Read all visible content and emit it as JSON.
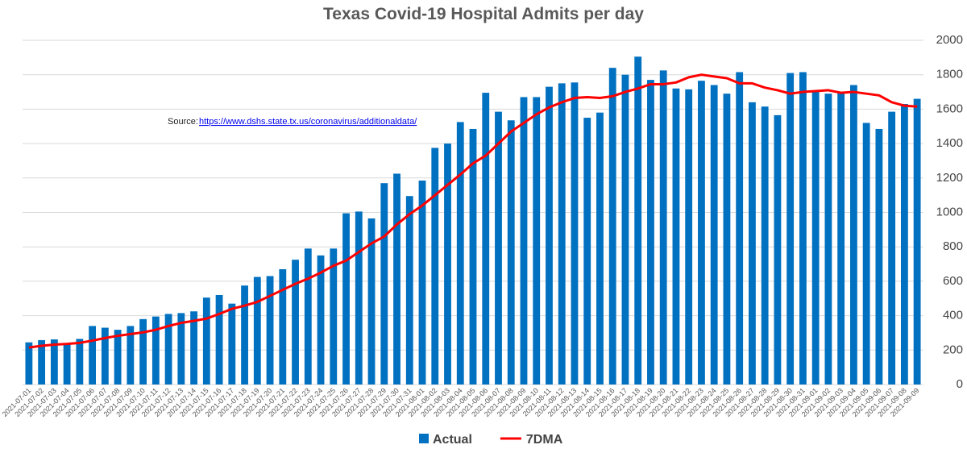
{
  "chart_data": {
    "type": "bar_line",
    "title": "Texas Covid-19 Hospital Admits per day",
    "source_label": "Source:",
    "source_url": "https://www.dshs.state.tx.us/coronavirus/additionaldata/",
    "categories": [
      "2021-07-01",
      "2021-07-02",
      "2021-07-03",
      "2021-07-04",
      "2021-07-05",
      "2021-07-06",
      "2021-07-07",
      "2021-07-08",
      "2021-07-09",
      "2021-07-10",
      "2021-07-11",
      "2021-07-12",
      "2021-07-13",
      "2021-07-14",
      "2021-07-15",
      "2021-07-16",
      "2021-07-17",
      "2021-07-18",
      "2021-07-19",
      "2021-07-20",
      "2021-07-21",
      "2021-07-22",
      "2021-07-23",
      "2021-07-24",
      "2021-07-25",
      "2021-07-26",
      "2021-07-27",
      "2021-07-28",
      "2021-07-29",
      "2021-07-30",
      "2021-07-31",
      "2021-08-01",
      "2021-08-02",
      "2021-08-03",
      "2021-08-04",
      "2021-08-05",
      "2021-08-06",
      "2021-08-07",
      "2021-08-08",
      "2021-08-09",
      "2021-08-10",
      "2021-08-11",
      "2021-08-12",
      "2021-08-13",
      "2021-08-14",
      "2021-08-15",
      "2021-08-16",
      "2021-08-17",
      "2021-08-18",
      "2021-08-19",
      "2021-08-20",
      "2021-08-21",
      "2021-08-22",
      "2021-08-23",
      "2021-08-24",
      "2021-08-25",
      "2021-08-26",
      "2021-08-27",
      "2021-08-28",
      "2021-08-29",
      "2021-08-30",
      "2021-08-31",
      "2021-09-01",
      "2021-09-02",
      "2021-09-03",
      "2021-09-04",
      "2021-09-05",
      "2021-09-06",
      "2021-09-07",
      "2021-09-08",
      "2021-09-09"
    ],
    "series": [
      {
        "name": "Actual",
        "kind": "bar",
        "color": "#0070c0",
        "values": [
          245,
          258,
          262,
          232,
          265,
          340,
          330,
          318,
          340,
          380,
          395,
          410,
          415,
          425,
          505,
          520,
          470,
          575,
          625,
          630,
          670,
          725,
          790,
          750,
          790,
          995,
          1005,
          965,
          1170,
          1225,
          1095,
          1185,
          1375,
          1400,
          1525,
          1485,
          1695,
          1585,
          1535,
          1670,
          1670,
          1730,
          1750,
          1755,
          1550,
          1580,
          1840,
          1800,
          1905,
          1770,
          1825,
          1720,
          1715,
          1765,
          1740,
          1690,
          1815,
          1640,
          1615,
          1565,
          1810,
          1815,
          1700,
          1690,
          1700,
          1740,
          1520,
          1485,
          1585,
          1630,
          1660
        ]
      },
      {
        "name": "7DMA",
        "kind": "line",
        "color": "#ff0000",
        "values": [
          215,
          225,
          232,
          236,
          242,
          255,
          270,
          283,
          293,
          303,
          318,
          340,
          358,
          370,
          383,
          410,
          440,
          458,
          480,
          515,
          550,
          585,
          615,
          650,
          690,
          720,
          770,
          820,
          860,
          930,
          990,
          1040,
          1100,
          1160,
          1220,
          1285,
          1330,
          1400,
          1470,
          1520,
          1570,
          1610,
          1640,
          1665,
          1670,
          1665,
          1675,
          1700,
          1720,
          1745,
          1745,
          1755,
          1785,
          1800,
          1790,
          1780,
          1750,
          1750,
          1725,
          1710,
          1690,
          1700,
          1705,
          1710,
          1695,
          1700,
          1690,
          1680,
          1640,
          1620,
          1615
        ]
      }
    ],
    "ylim": [
      0,
      2000
    ],
    "yticks": [
      0,
      200,
      400,
      600,
      800,
      1000,
      1200,
      1400,
      1600,
      1800,
      2000
    ],
    "grid": true,
    "legend": "bottom"
  }
}
